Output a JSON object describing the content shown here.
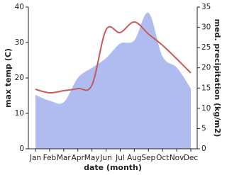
{
  "chart_data": {
    "type": "line",
    "x_label": "date (month)",
    "y_label": "max temp (C)",
    "y2_label": "med. precipitation (kg/m2)",
    "categories": [
      "Jan",
      "Feb",
      "Mar",
      "Apr",
      "May",
      "Jun",
      "Jul",
      "Aug",
      "Sep",
      "Oct",
      "Nov",
      "Dec"
    ],
    "series": [
      {
        "name": "med. precipitation",
        "color": "#b0bcf0",
        "axis": "y2",
        "fill": true,
        "values": [
          13.3,
          11.9,
          11.5,
          17.5,
          20,
          22.4,
          26,
          26.8,
          33.6,
          22.8,
          20.1,
          14.9
        ]
      },
      {
        "name": "max temp",
        "color": "#c85a5a",
        "axis": "y",
        "fill": false,
        "values": [
          16.8,
          15.8,
          16.4,
          17,
          18,
          33.6,
          32.8,
          35.8,
          32.4,
          29.2,
          25.4,
          21.4
        ]
      }
    ],
    "ylim": [
      0,
      40
    ],
    "yticks": [
      0,
      10,
      20,
      30,
      40
    ],
    "y2lim": [
      0,
      35
    ],
    "y2ticks": [
      0,
      5,
      10,
      15,
      20,
      25,
      30,
      35
    ]
  }
}
